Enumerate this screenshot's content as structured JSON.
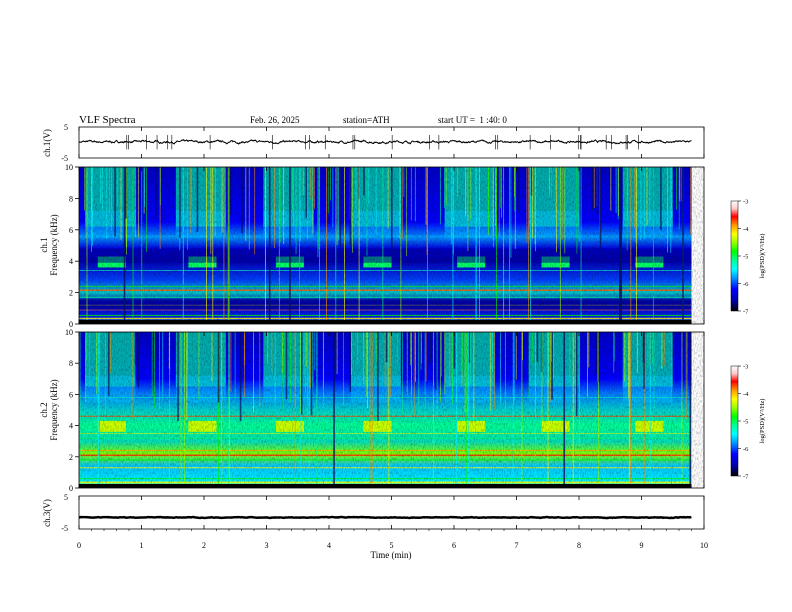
{
  "header": {
    "title": "VLF Spectra",
    "date": "Feb. 26, 2025",
    "station": "station=ATH",
    "start_ut": "start UT =  1 :40: 0"
  },
  "colors": {
    "trace": "#000000",
    "colormap": [
      "#000000",
      "#0000b4",
      "#0000ff",
      "#0096ff",
      "#00ffff",
      "#00ff96",
      "#00ff00",
      "#96ff00",
      "#ffff00",
      "#ff9600",
      "#ff0000",
      "#ffc8c8",
      "#ffffff"
    ]
  },
  "chart_data": [
    {
      "id": "ch1-waveform",
      "type": "line",
      "ylabel": "ch.1(V)",
      "ylim": [
        -5,
        5
      ],
      "yticks": [
        "5",
        "-5"
      ],
      "xlim": [
        0,
        9.8
      ],
      "baseline_v": 0.2,
      "amplitude_v": 0.8
    },
    {
      "id": "ch1-spectrogram",
      "type": "heatmap",
      "ylabel_channel": "ch.1",
      "ylabel": "Frequency (kHz)",
      "ylim": [
        0,
        10
      ],
      "yticks": [
        "0",
        "2",
        "4",
        "6",
        "8",
        "10"
      ],
      "xlim": [
        0,
        9.8
      ],
      "colorbar": {
        "label": "log(PSD)(V²/Hz)",
        "range": [
          -7,
          -3
        ],
        "ticks": [
          "-3",
          "-4",
          "-5",
          "-6",
          "-7"
        ]
      },
      "transmitter_blocks_min": [
        0.3,
        1.75,
        3.15,
        4.55,
        6.05,
        7.4,
        8.9
      ],
      "block_width_min": 0.45
    },
    {
      "id": "ch2-spectrogram",
      "type": "heatmap",
      "ylabel_channel": "ch.2",
      "ylabel": "Frequency (kHz)",
      "ylim": [
        0,
        10
      ],
      "yticks": [
        "0",
        "2",
        "4",
        "6",
        "8",
        "10"
      ],
      "xlim": [
        0,
        9.8
      ],
      "colorbar": {
        "label": "log(PSD)(V²/Hz)",
        "range": [
          -7,
          -3
        ],
        "ticks": [
          "-3",
          "-4",
          "-5",
          "-6",
          "-7"
        ]
      },
      "transmitter_blocks_min": [
        0.3,
        1.75,
        3.15,
        4.55,
        6.05,
        7.4,
        8.9
      ],
      "block_width_min": 0.45
    },
    {
      "id": "ch3-waveform",
      "type": "line",
      "ylabel": "ch.3(V)",
      "ylim": [
        -5,
        5
      ],
      "yticks": [
        "5",
        "-5"
      ],
      "xlim": [
        0,
        9.8
      ],
      "baseline_v": -1.5,
      "amplitude_v": 0.2
    }
  ],
  "x_axis": {
    "label": "Time (min)",
    "range": [
      0,
      10
    ],
    "ticks": [
      "0",
      "1",
      "2",
      "3",
      "4",
      "5",
      "6",
      "7",
      "8",
      "9",
      "10"
    ]
  }
}
